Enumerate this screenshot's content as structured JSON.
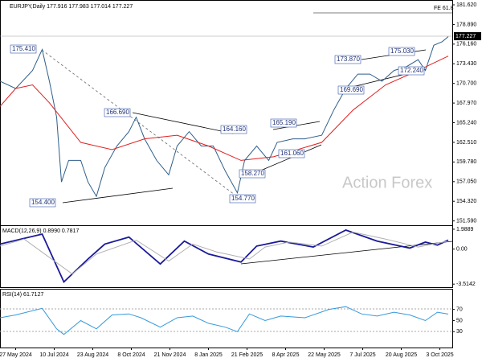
{
  "header": "EURJPY,Daily  177.916 177.983 177.014 177.227",
  "watermark": "Action Forex",
  "fib_label": "FE 61.8",
  "last_price": "177.227",
  "annotations": [
    "175.410",
    "154.400",
    "166.690",
    "164.160",
    "165.190",
    "158.270",
    "161.060",
    "154.770",
    "173.870",
    "175.030",
    "172.240",
    "169.690"
  ],
  "chart_data": [
    {
      "type": "line",
      "xlim": [
        -13,
        362.3
      ],
      "xticks": [
        {
          "value": 0,
          "label": "27 May 2024"
        },
        {
          "value": 32,
          "label": "10 Jul 2024"
        },
        {
          "value": 64,
          "label": "23 Aug 2024"
        },
        {
          "value": 96,
          "label": "8 Oct 2024"
        },
        {
          "value": 128,
          "label": "21 Nov 2024"
        },
        {
          "value": 160,
          "label": "8 Jan 2025"
        },
        {
          "value": 192,
          "label": "21 Feb 2025"
        },
        {
          "value": 224,
          "label": "8 Apr 2025"
        },
        {
          "value": 256,
          "label": "22 May 2025"
        },
        {
          "value": 288,
          "label": "7 Jul 2025"
        },
        {
          "value": 320,
          "label": "20 Aug 2025"
        },
        {
          "value": 352,
          "label": "3 Oct 2025"
        }
      ],
      "ylim": [
        150.99,
        182.18
      ],
      "yticks": [
        {
          "value": 181.62,
          "label": "181.620"
        },
        {
          "value": 178.89,
          "label": "178.890"
        },
        {
          "value": 176.16,
          "label": "176.160"
        },
        {
          "value": 173.43,
          "label": "173.430"
        },
        {
          "value": 170.7,
          "label": "170.700"
        },
        {
          "value": 167.97,
          "label": "167.970"
        },
        {
          "value": 165.24,
          "label": "165.240"
        },
        {
          "value": 162.51,
          "label": "162.510"
        },
        {
          "value": 159.78,
          "label": "159.780"
        },
        {
          "value": 157.05,
          "label": "157.050"
        },
        {
          "value": 154.32,
          "label": "154.320"
        },
        {
          "value": 151.59,
          "label": "151.590"
        }
      ],
      "series": [
        {
          "color": "#2f5f8a",
          "x": [
            -13,
            0,
            14,
            22,
            28,
            34,
            38,
            44,
            54,
            60,
            67,
            74,
            84,
            94,
            100,
            107,
            117,
            127,
            134,
            144,
            154,
            164,
            174,
            184,
            190,
            200,
            210,
            217,
            230,
            240,
            254,
            264,
            274,
            284,
            294,
            304,
            314,
            324,
            334,
            340,
            347,
            354,
            359
          ],
          "values": [
            171,
            170,
            172.5,
            175.4,
            171,
            166,
            157,
            160,
            160,
            157,
            155,
            159,
            162,
            164,
            166,
            163,
            160,
            158,
            162,
            164,
            162,
            162,
            158.5,
            155.5,
            160,
            162,
            160,
            162.5,
            163,
            163,
            163.5,
            167,
            170,
            172,
            172,
            171,
            172.5,
            173,
            174,
            172.5,
            176,
            176.5,
            177.2
          ]
        },
        {
          "color": "#e02020",
          "x": [
            -13,
            0,
            14,
            28,
            54,
            80,
            107,
            134,
            160,
            187,
            214,
            254,
            280,
            307,
            334,
            359
          ],
          "values": [
            167.5,
            170,
            170.5,
            168,
            162.5,
            161.5,
            163,
            163.5,
            162,
            160,
            160.5,
            162.5,
            167,
            170.5,
            172.5,
            174.5
          ]
        }
      ]
    },
    {
      "type": "line",
      "title": "MACD(12,26,9) 0.8990 0.7817",
      "xlim": [
        -13,
        362.3
      ],
      "ylim": [
        -3.82,
        2.307
      ],
      "yticks": [
        {
          "value": 1.9889,
          "label": "1.9889"
        },
        {
          "value": 0,
          "label": "0.00"
        },
        {
          "value": -3.5142,
          "label": "-3.5142"
        }
      ],
      "series": [
        {
          "color": "#1a1a9a",
          "x": [
            -13,
            22,
            40,
            60,
            74,
            94,
            120,
            140,
            160,
            187,
            200,
            220,
            247,
            274,
            300,
            327,
            340,
            350,
            359
          ],
          "values": [
            0.5,
            1.5,
            -3.3,
            -1,
            0.5,
            1.2,
            -1.5,
            0.8,
            -0.5,
            -1.3,
            0.3,
            0.8,
            0.2,
            1.9,
            0.8,
            0.1,
            0.7,
            0.4,
            0.899
          ]
        },
        {
          "color": "#b0b0b0",
          "x": [
            -13,
            7,
            47,
            67,
            100,
            127,
            147,
            167,
            194,
            207,
            227,
            254,
            280,
            307,
            334,
            350,
            359
          ],
          "values": [
            0.3,
            1.0,
            -2.5,
            -0.5,
            0.9,
            -1.2,
            0.5,
            -0.3,
            -1.0,
            0.2,
            0.7,
            0.3,
            1.7,
            1.0,
            0.2,
            0.6,
            0.7817
          ]
        }
      ]
    },
    {
      "type": "line",
      "title": "RSI(14) 61.7127",
      "xlim": [
        -13,
        362.3
      ],
      "ylim": [
        1.4,
        105.7
      ],
      "yticks": [
        70,
        50,
        30
      ],
      "series": [
        {
          "color": "#3399dd",
          "x": [
            -13,
            0,
            22,
            34,
            40,
            54,
            67,
            80,
            94,
            104,
            120,
            134,
            147,
            160,
            174,
            184,
            194,
            207,
            220,
            240,
            260,
            274,
            287,
            300,
            314,
            327,
            340,
            350,
            359
          ],
          "values": [
            55,
            60,
            72,
            35,
            25,
            50,
            35,
            60,
            62,
            55,
            38,
            55,
            58,
            45,
            38,
            30,
            62,
            50,
            58,
            55,
            70,
            75,
            62,
            58,
            65,
            60,
            50,
            65,
            61.7127
          ]
        }
      ]
    }
  ]
}
